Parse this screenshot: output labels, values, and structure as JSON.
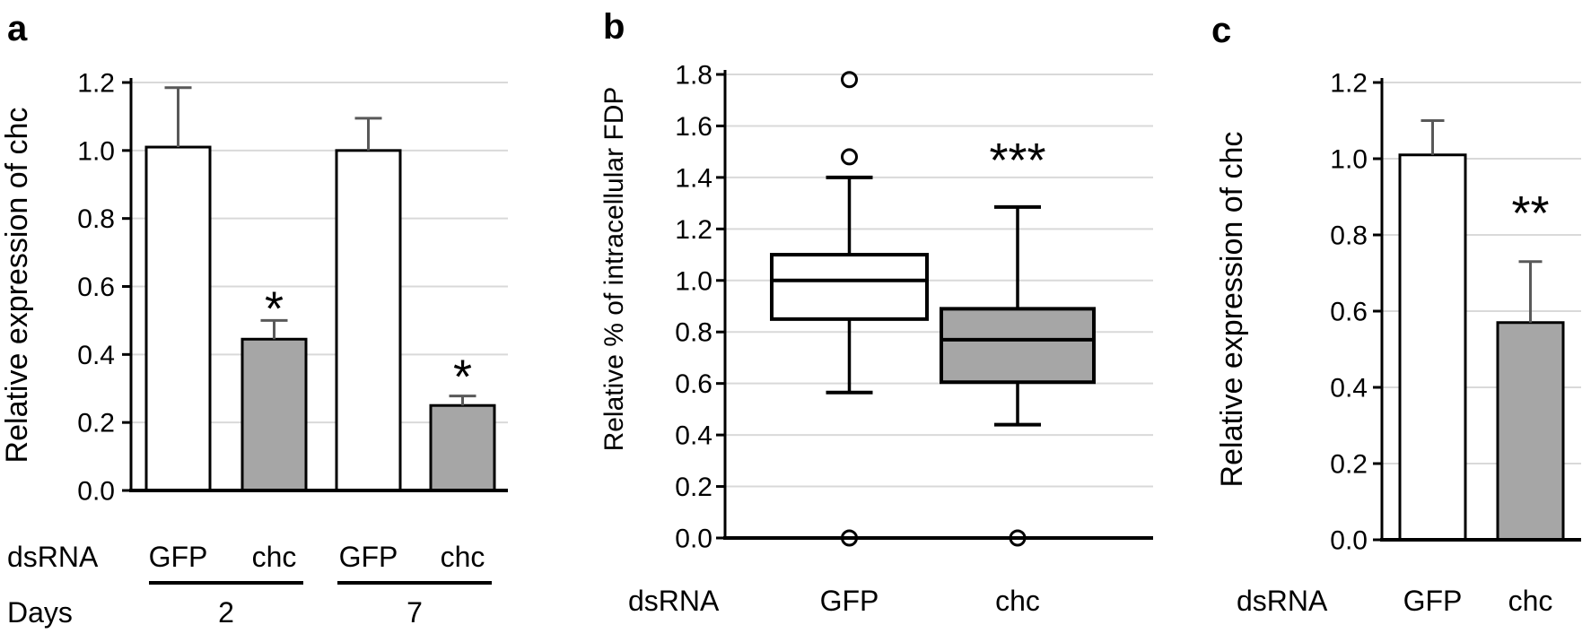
{
  "colors": {
    "bar_white": "#ffffff",
    "bar_gray": "#a6a6a6",
    "error_bar": "#595959",
    "gridline": "#d9d9d9",
    "axis": "#000000",
    "text": "#000000",
    "background": "#ffffff"
  },
  "figure": {
    "panels": [
      {
        "label": "a"
      },
      {
        "label": "b"
      },
      {
        "label": "c"
      }
    ]
  },
  "chart_data": [
    {
      "panel": "a",
      "type": "bar",
      "title": "",
      "ylabel": "Relative expression of chc",
      "ylim": [
        0,
        1.2
      ],
      "ytick_labels": [
        "0.0",
        "0.2",
        "0.4",
        "0.6",
        "0.8",
        "1.0",
        "1.2"
      ],
      "grid": true,
      "x_row_label": "dsRNA",
      "categories": [
        "GFP",
        "chc",
        "GFP",
        "chc"
      ],
      "values": [
        1.01,
        0.445,
        1.0,
        0.25
      ],
      "errors_up": [
        0.175,
        0.055,
        0.095,
        0.028
      ],
      "bar_styles": [
        "open",
        "gray",
        "open",
        "gray"
      ],
      "significance": [
        {
          "text": "*",
          "bar": 1,
          "y": 0.56
        },
        {
          "text": "*",
          "bar": 3,
          "y": 0.36
        }
      ],
      "group_row_label": "Days",
      "groups": [
        {
          "label": "2",
          "bars": [
            0,
            1
          ]
        },
        {
          "label": "7",
          "bars": [
            2,
            3
          ]
        }
      ]
    },
    {
      "panel": "b",
      "type": "boxplot",
      "title": "",
      "ylabel": "Relative % of intracellular FDP",
      "ylim": [
        0,
        1.8
      ],
      "ytick_labels": [
        "0.0",
        "0.2",
        "0.4",
        "0.6",
        "0.8",
        "1.0",
        "1.2",
        "1.4",
        "1.6",
        "1.8"
      ],
      "grid": true,
      "x_row_label": "dsRNA",
      "categories": [
        "GFP",
        "chc"
      ],
      "boxes": [
        {
          "median": 1.0,
          "q1": 0.85,
          "q3": 1.1,
          "whisker_low": 0.565,
          "whisker_high": 1.4,
          "outliers": [
            1.78,
            1.48,
            0.0
          ],
          "style": "open"
        },
        {
          "median": 0.77,
          "q1": 0.605,
          "q3": 0.89,
          "whisker_low": 0.44,
          "whisker_high": 1.285,
          "outliers": [
            0.0
          ],
          "style": "gray"
        }
      ],
      "significance": [
        {
          "text": "***",
          "box": 1,
          "y": 1.5
        }
      ]
    },
    {
      "panel": "c",
      "type": "bar",
      "title": "",
      "ylabel": "Relative expression of chc",
      "ylim": [
        0,
        1.2
      ],
      "ytick_labels": [
        "0.0",
        "0.2",
        "0.4",
        "0.6",
        "0.8",
        "1.0",
        "1.2"
      ],
      "grid": true,
      "x_row_label": "dsRNA",
      "categories": [
        "GFP",
        "chc"
      ],
      "values": [
        1.01,
        0.57
      ],
      "errors_up": [
        0.09,
        0.16
      ],
      "bar_styles": [
        "open",
        "gray"
      ],
      "significance": [
        {
          "text": "**",
          "bar": 1,
          "y": 0.88
        }
      ]
    }
  ]
}
